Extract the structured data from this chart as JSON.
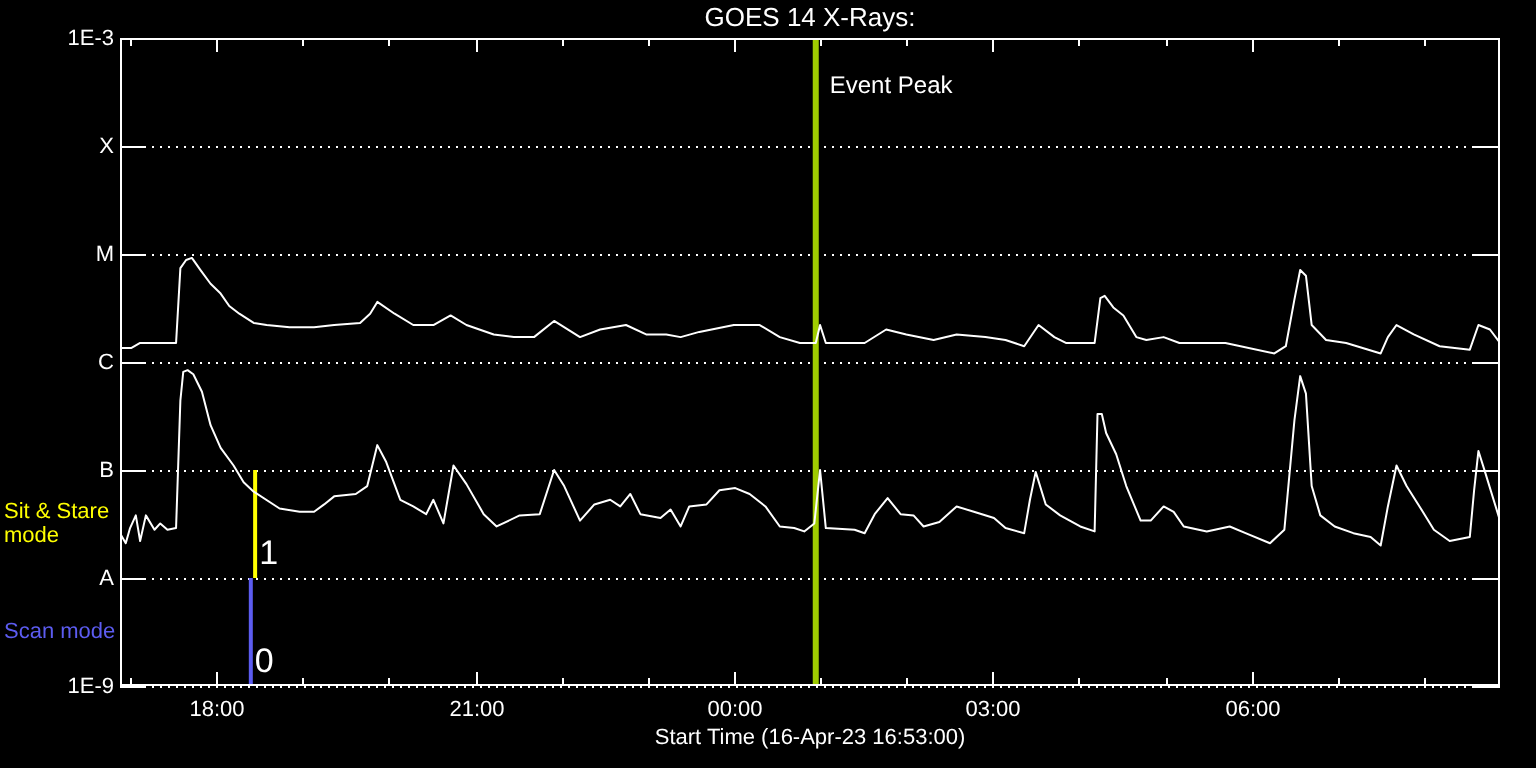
{
  "chart_data": {
    "type": "line",
    "title": "GOES 14 X-Rays:",
    "xlabel": "Start Time (16-Apr-23 16:53:00)",
    "log": true,
    "grid": "y",
    "legend": "left",
    "xlim": [
      "--04-16T16:53",
      "--04-17T08:53"
    ],
    "xticks": [
      {
        "value": "--04-16T17:00",
        "label": null
      },
      {
        "value": "--04-16T18:00",
        "label": "18:00"
      },
      {
        "value": "--04-16T19:00",
        "label": null
      },
      {
        "value": "--04-16T20:00",
        "label": null
      },
      {
        "value": "--04-16T21:00",
        "label": "21:00"
      },
      {
        "value": "--04-16T22:00",
        "label": null
      },
      {
        "value": "--04-16T23:00",
        "label": null
      },
      {
        "value": "--04-17T00:00",
        "label": "00:00"
      },
      {
        "value": "--04-17T01:00",
        "label": null
      },
      {
        "value": "--04-17T02:00",
        "label": null
      },
      {
        "value": "--04-17T03:00",
        "label": "03:00"
      },
      {
        "value": "--04-17T04:00",
        "label": null
      },
      {
        "value": "--04-17T05:00",
        "label": null
      },
      {
        "value": "--04-17T06:00",
        "label": "06:00"
      },
      {
        "value": "--04-17T07:00",
        "label": null
      },
      {
        "value": "--04-17T08:00",
        "label": null
      }
    ],
    "ylim": [
      1e-09,
      0.001
    ],
    "yticks": [
      {
        "value": 1e-09,
        "label": "1E-9"
      },
      {
        "value": 1e-08,
        "label": "A"
      },
      {
        "value": 1e-07,
        "label": "B"
      },
      {
        "value": 1e-06,
        "label": "C"
      },
      {
        "value": 1e-05,
        "label": "M"
      },
      {
        "value": 0.0001,
        "label": "X"
      },
      {
        "value": 0.001,
        "label": "1E-3"
      }
    ],
    "y2lim": [
      0,
      6
    ],
    "ref_lines": [
      {
        "axis": "x",
        "value": "--04-17T00:57",
        "label": "Event Peak",
        "color": "#9fcc00"
      }
    ],
    "series": [
      {
        "color": "#ffffff",
        "x": [
          "--04-16T16:53",
          "--04-16T17:01",
          "--04-16T17:07",
          "--04-16T17:21",
          "--04-16T17:32",
          "--04-16T17:35",
          "--04-16T17:39",
          "--04-16T17:43",
          "--04-16T17:49",
          "--04-16T17:56",
          "--04-16T18:03",
          "--04-16T18:09",
          "--04-16T18:16",
          "--04-16T18:26",
          "--04-16T18:35",
          "--04-16T18:51",
          "--04-16T19:08",
          "--04-16T19:22",
          "--04-16T19:40",
          "--04-16T19:47",
          "--04-16T19:52",
          "--04-16T20:04",
          "--04-16T20:17",
          "--04-16T20:31",
          "--04-16T20:43",
          "--04-16T20:54",
          "--04-16T21:13",
          "--04-16T21:27",
          "--04-16T21:41",
          "--04-16T21:55",
          "--04-16T22:13",
          "--04-16T22:27",
          "--04-16T22:45",
          "--04-16T22:59",
          "--04-16T23:13",
          "--04-16T23:23",
          "--04-16T23:36",
          "--04-17T00:00",
          "--04-17T00:18",
          "--04-17T00:32",
          "--04-17T00:46",
          "--04-17T00:57",
          "--04-17T01:00",
          "--04-17T01:04",
          "--04-17T01:31",
          "--04-17T01:46",
          "--04-17T02:00",
          "--04-17T02:19",
          "--04-17T02:35",
          "--04-17T02:55",
          "--04-17T03:09",
          "--04-17T03:22",
          "--04-17T03:32",
          "--04-17T03:43",
          "--04-17T03:51",
          "--04-17T04:11",
          "--04-17T04:15",
          "--04-17T04:18",
          "--04-17T04:24",
          "--04-17T04:31",
          "--04-17T04:40",
          "--04-17T04:47",
          "--04-17T04:59",
          "--04-17T05:10",
          "--04-17T05:42",
          "--04-17T06:16",
          "--04-17T06:24",
          "--04-17T06:30",
          "--04-17T06:34",
          "--04-17T06:38",
          "--04-17T06:42",
          "--04-17T06:52",
          "--04-17T07:06",
          "--04-17T07:30",
          "--04-17T07:35",
          "--04-17T07:41",
          "--04-17T07:53",
          "--04-17T08:11",
          "--04-17T08:32",
          "--04-17T08:38",
          "--04-17T08:46",
          "--04-17T08:53"
        ],
        "values": [
          1.35e-06,
          1.35e-06,
          1.5e-06,
          1.5e-06,
          1.5e-06,
          7.4e-06,
          8.8e-06,
          9.2e-06,
          7.1e-06,
          5.3e-06,
          4.3e-06,
          3.3e-06,
          2.8e-06,
          2.3e-06,
          2.2e-06,
          2.1e-06,
          2.1e-06,
          2.2e-06,
          2.3e-06,
          2.8e-06,
          3.6e-06,
          2.8e-06,
          2.2e-06,
          2.2e-06,
          2.7e-06,
          2.2e-06,
          1.8e-06,
          1.7e-06,
          1.7e-06,
          2.4e-06,
          1.7e-06,
          2e-06,
          2.2e-06,
          1.8e-06,
          1.8e-06,
          1.7e-06,
          1.9e-06,
          2.2e-06,
          2.2e-06,
          1.7e-06,
          1.5e-06,
          1.5e-06,
          2.2e-06,
          1.5e-06,
          1.5e-06,
          2e-06,
          1.8e-06,
          1.6e-06,
          1.8e-06,
          1.7e-06,
          1.6e-06,
          1.4e-06,
          2.2e-06,
          1.7e-06,
          1.5e-06,
          1.5e-06,
          3.9e-06,
          4.1e-06,
          3.2e-06,
          2.7e-06,
          1.7e-06,
          1.6e-06,
          1.7e-06,
          1.5e-06,
          1.5e-06,
          1.2e-06,
          1.4e-06,
          3.8e-06,
          7.1e-06,
          6.3e-06,
          2.2e-06,
          1.6e-06,
          1.5e-06,
          1.2e-06,
          1.7e-06,
          2.2e-06,
          1.8e-06,
          1.4e-06,
          1.3e-06,
          2.2e-06,
          2e-06,
          1.5e-06
        ]
      },
      {
        "color": "#ffffff",
        "x": [
          "--04-16T16:53",
          "--04-16T16:57",
          "--04-16T17:00",
          "--04-16T17:04",
          "--04-16T17:07",
          "--04-16T17:11",
          "--04-16T17:17",
          "--04-16T17:21",
          "--04-16T17:26",
          "--04-16T17:32",
          "--04-16T17:35",
          "--04-16T17:37",
          "--04-16T17:40",
          "--04-16T17:44",
          "--04-16T17:50",
          "--04-16T17:56",
          "--04-16T18:03",
          "--04-16T18:12",
          "--04-16T18:19",
          "--04-16T18:26",
          "--04-16T18:44",
          "--04-16T18:58",
          "--04-16T19:08",
          "--04-16T19:15",
          "--04-16T19:22",
          "--04-16T19:37",
          "--04-16T19:45",
          "--04-16T19:52",
          "--04-16T19:58",
          "--04-16T20:08",
          "--04-16T20:17",
          "--04-16T20:26",
          "--04-16T20:31",
          "--04-16T20:38",
          "--04-16T20:45",
          "--04-16T20:54",
          "--04-16T21:06",
          "--04-16T21:15",
          "--04-16T21:31",
          "--04-16T21:45",
          "--04-16T21:55",
          "--04-16T22:02",
          "--04-16T22:13",
          "--04-16T22:23",
          "--04-16T22:34",
          "--04-16T22:41",
          "--04-16T22:48",
          "--04-16T22:55",
          "--04-16T23:09",
          "--04-16T23:16",
          "--04-16T23:23",
          "--04-16T23:29",
          "--04-16T23:41",
          "--04-16T23:50",
          "--04-17T00:01",
          "--04-17T00:11",
          "--04-17T00:22",
          "--04-17T00:32",
          "--04-17T00:42",
          "--04-17T00:49",
          "--04-17T00:56",
          "--04-17T01:00",
          "--04-17T01:04",
          "--04-17T01:24",
          "--04-17T01:31",
          "--04-17T01:38",
          "--04-17T01:47",
          "--04-17T01:56",
          "--04-17T02:05",
          "--04-17T02:12",
          "--04-17T02:23",
          "--04-17T02:35",
          "--04-17T02:47",
          "--04-17T03:01",
          "--04-17T03:09",
          "--04-17T03:22",
          "--04-17T03:26",
          "--04-17T03:30",
          "--04-17T03:37",
          "--04-17T03:47",
          "--04-17T04:01",
          "--04-17T04:11",
          "--04-17T04:13",
          "--04-17T04:16",
          "--04-17T04:19",
          "--04-17T04:26",
          "--04-17T04:33",
          "--04-17T04:43",
          "--04-17T04:50",
          "--04-17T04:59",
          "--04-17T05:06",
          "--04-17T05:13",
          "--04-17T05:29",
          "--04-17T05:45",
          "--04-17T05:56",
          "--04-17T06:13",
          "--04-17T06:23",
          "--04-17T06:30",
          "--04-17T06:34",
          "--04-17T06:38",
          "--04-17T06:42",
          "--04-17T06:48",
          "--04-17T06:58",
          "--04-17T07:11",
          "--04-17T07:23",
          "--04-17T07:30",
          "--04-17T07:35",
          "--04-17T07:41",
          "--04-17T07:48",
          "--04-17T07:57",
          "--04-17T08:07",
          "--04-17T08:18",
          "--04-17T08:32",
          "--04-17T08:35",
          "--04-17T08:38",
          "--04-17T08:43",
          "--04-17T08:53"
        ],
        "values": [
          2.6e-08,
          2.1e-08,
          2.9e-08,
          3.8e-08,
          2.2e-08,
          3.8e-08,
          2.8e-08,
          3.2e-08,
          2.8e-08,
          2.9e-08,
          4.4e-07,
          8.1e-07,
          8.4e-07,
          7.7e-07,
          5.3e-07,
          2.6e-07,
          1.6e-07,
          1.1e-07,
          7.7e-08,
          6.3e-08,
          4.4e-08,
          4.1e-08,
          4.1e-08,
          4.8e-08,
          5.7e-08,
          6e-08,
          7.1e-08,
          1.7e-07,
          1.2e-07,
          5.3e-08,
          4.6e-08,
          3.9e-08,
          5.3e-08,
          3.2e-08,
          1.1e-07,
          7.4e-08,
          3.9e-08,
          3e-08,
          3.8e-08,
          3.9e-08,
          1e-07,
          7.1e-08,
          3.4e-08,
          4.8e-08,
          5.3e-08,
          4.6e-08,
          6e-08,
          3.9e-08,
          3.6e-08,
          4.3e-08,
          3e-08,
          4.6e-08,
          4.8e-08,
          6.5e-08,
          6.8e-08,
          6e-08,
          4.6e-08,
          3e-08,
          2.9e-08,
          2.7e-08,
          3.2e-08,
          1e-07,
          2.9e-08,
          2.8e-08,
          2.6e-08,
          3.9e-08,
          5.5e-08,
          3.9e-08,
          3.8e-08,
          3e-08,
          3.3e-08,
          4.6e-08,
          4.1e-08,
          3.6e-08,
          2.9e-08,
          2.6e-08,
          5.3e-08,
          9.6e-08,
          4.8e-08,
          3.8e-08,
          3e-08,
          2.7e-08,
          3.3e-07,
          3.3e-07,
          2.2e-07,
          1.4e-07,
          7.1e-08,
          3.4e-08,
          3.4e-08,
          4.6e-08,
          4.1e-08,
          3e-08,
          2.7e-08,
          3e-08,
          2.6e-08,
          2.1e-08,
          2.8e-08,
          2.9e-07,
          7.4e-07,
          5.1e-07,
          7.1e-08,
          3.8e-08,
          3e-08,
          2.6e-08,
          2.4e-08,
          2e-08,
          4.6e-08,
          1.1e-07,
          7.1e-08,
          4.6e-08,
          2.8e-08,
          2.2e-08,
          2.4e-08,
          6.5e-08,
          1.5e-07,
          9.2e-08,
          3.4e-08
        ]
      },
      {
        "name": "Scan mode",
        "axis": "y2",
        "color": "#5c5cf0",
        "x": [
          "--04-16T18:24",
          "--04-16T18:24"
        ],
        "values": [
          0,
          1
        ],
        "value_labels": [
          "0",
          null
        ]
      },
      {
        "name": "Sit & Stare mode",
        "axis": "y2",
        "color": "#ffff00",
        "x": [
          "--04-16T18:27",
          "--04-16T18:27"
        ],
        "values": [
          1,
          2
        ],
        "value_labels": [
          "1",
          null
        ]
      }
    ]
  }
}
